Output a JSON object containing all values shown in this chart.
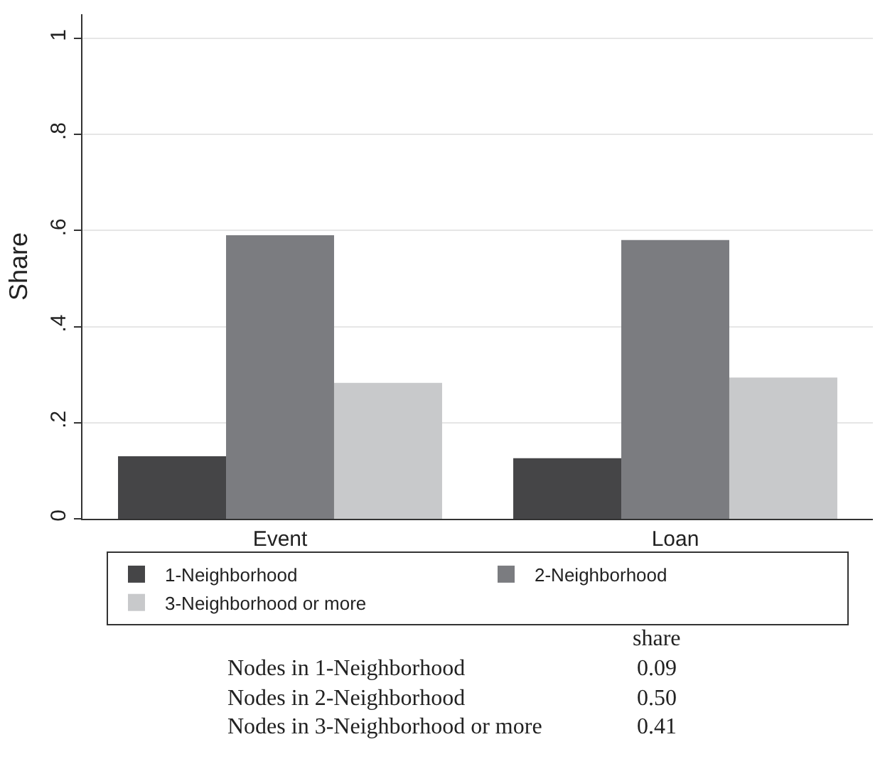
{
  "chart_data": {
    "type": "bar",
    "ylabel": "Share",
    "categories": [
      "Event",
      "Loan"
    ],
    "series": [
      {
        "name": "1-Neighborhood",
        "color": "#454547",
        "values": [
          0.13,
          0.126
        ]
      },
      {
        "name": "2-Neighborhood",
        "color": "#7b7c80",
        "values": [
          0.59,
          0.58
        ]
      },
      {
        "name": "3-Neighborhood or more",
        "color": "#c8c9cb",
        "values": [
          0.283,
          0.294
        ]
      }
    ],
    "ylim": [
      0,
      1.05
    ],
    "yticks": [
      0,
      {
        "value": 0.2,
        "label": ".2"
      },
      {
        "value": 0.4,
        "label": ".4"
      },
      {
        "value": 0.6,
        "label": ".6"
      },
      {
        "value": 0.8,
        "label": ".8"
      },
      1
    ],
    "grid": "y",
    "legend": "bottom",
    "annotations": [
      "share",
      "Nodes in 1-Neighborhood",
      "0.09",
      "Nodes in 2-Neighborhood",
      "0.50",
      "Nodes in 3-Neighborhood or more",
      "0.41"
    ]
  }
}
